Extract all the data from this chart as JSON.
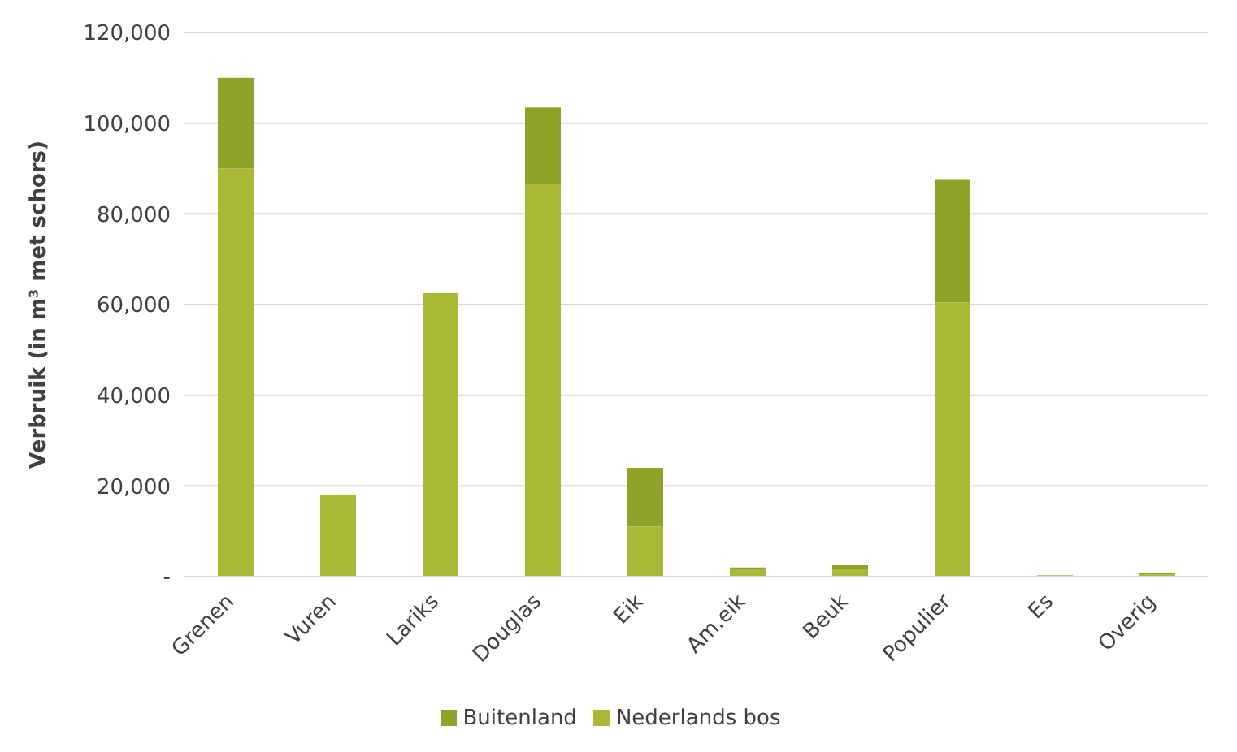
{
  "chart_data": {
    "type": "bar",
    "stacked": true,
    "ylabel": "Verbruik (in m³ met schors)",
    "categories": [
      "Grenen",
      "Vuren",
      "Lariks",
      "Douglas",
      "Eik",
      "Am.eik",
      "Beuk",
      "Populier",
      "Es",
      "Overig"
    ],
    "series": [
      {
        "name": "Nederlands bos",
        "color": "#a9b935",
        "values": [
          90000,
          18000,
          62500,
          86500,
          11000,
          1500,
          1500,
          60500,
          300,
          500
        ]
      },
      {
        "name": "Buitenland",
        "color": "#8fa32b",
        "values": [
          20000,
          0,
          0,
          17000,
          13000,
          500,
          1000,
          27000,
          0,
          300
        ]
      }
    ],
    "ylim": [
      0,
      120000
    ],
    "yticks": [
      {
        "value": 0,
        "label": "-"
      },
      {
        "value": 20000,
        "label": "20,000"
      },
      {
        "value": 40000,
        "label": "40,000"
      },
      {
        "value": 60000,
        "label": "60,000"
      },
      {
        "value": 80000,
        "label": "80,000"
      },
      {
        "value": 100000,
        "label": "100,000"
      },
      {
        "value": 120000,
        "label": "120,000"
      }
    ],
    "grid": "y",
    "legend": "bottom"
  }
}
